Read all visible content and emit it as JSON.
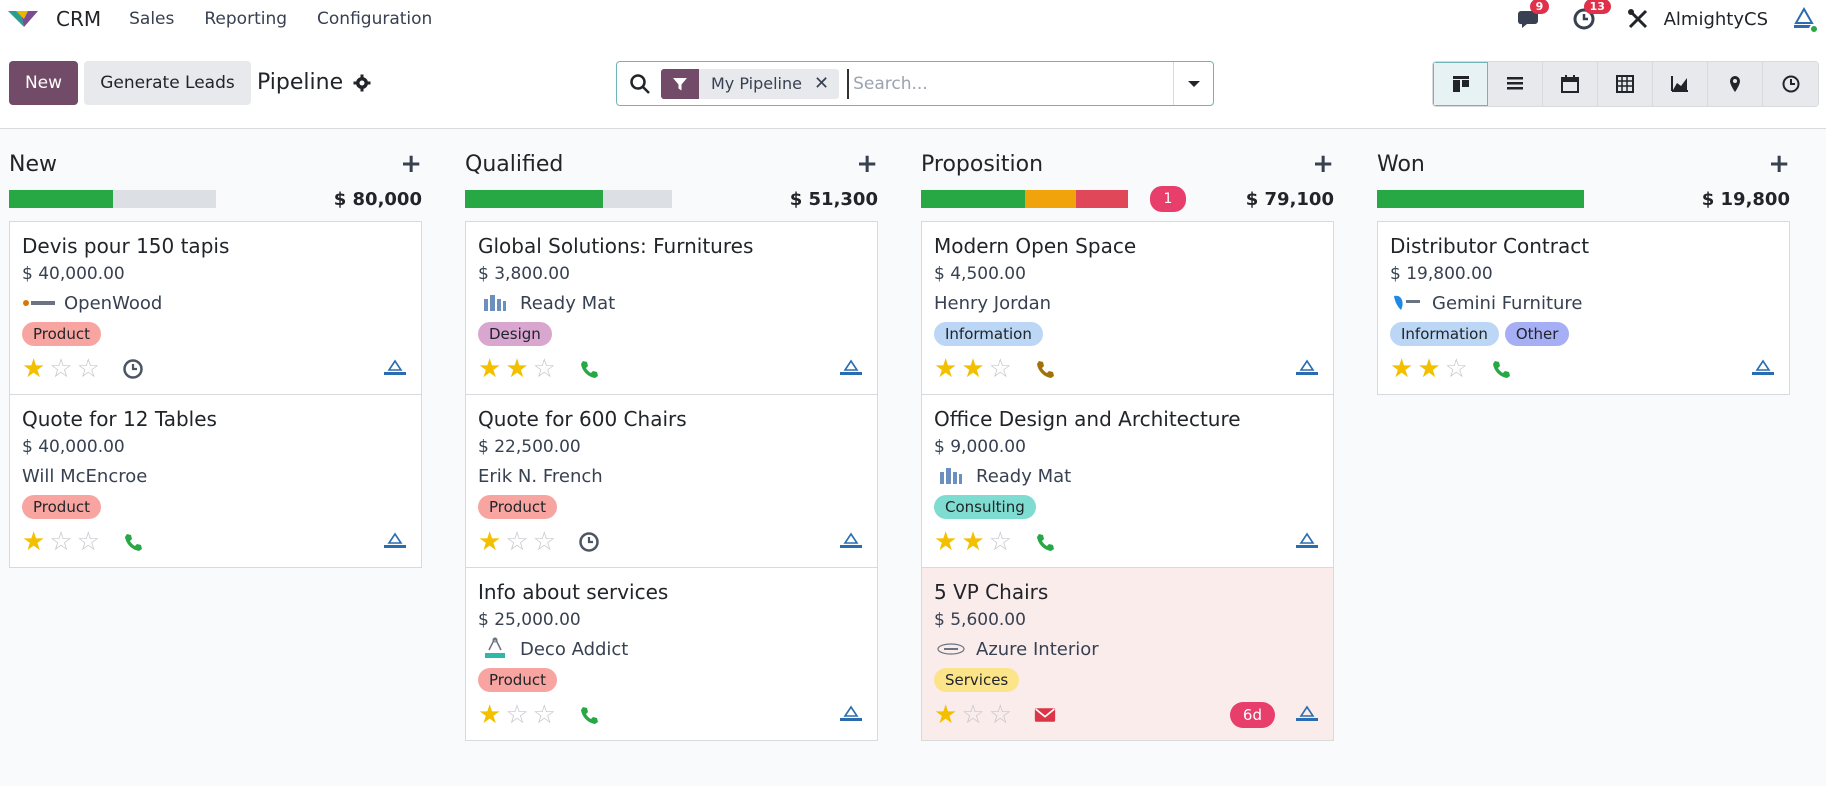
{
  "nav": {
    "app_name": "CRM",
    "menu": [
      "Sales",
      "Reporting",
      "Configuration"
    ],
    "messages_count": "9",
    "activities_count": "13",
    "company": "AlmightyCS"
  },
  "control": {
    "new_label": "New",
    "generate_label": "Generate Leads",
    "title": "Pipeline",
    "facet_label": "My Pipeline",
    "search_placeholder": "Search..."
  },
  "colors": {
    "primary": "#714b67",
    "green": "#28a745",
    "orange": "#f0a30a",
    "red": "#e0485a",
    "badge": "#e83e6c"
  },
  "columns": [
    {
      "title": "New",
      "total": "$ 80,000",
      "count_badge": "",
      "progress": [
        {
          "color": "#28a745",
          "fraction": 0.5
        }
      ],
      "cards": [
        {
          "title": "Devis pour 150 tapis",
          "amount": "$ 40,000.00",
          "partner": "OpenWood",
          "partner_logo": "openwood-logo",
          "tags": [
            {
              "label": "Product",
              "color": "#f8a5a1"
            }
          ],
          "stars": 1,
          "activity": "clock-icon",
          "days": ""
        },
        {
          "title": "Quote for 12 Tables",
          "amount": "$ 40,000.00",
          "partner": "Will McEncroe",
          "partner_logo": "",
          "tags": [
            {
              "label": "Product",
              "color": "#f8a5a1"
            }
          ],
          "stars": 1,
          "activity": "phone-icon",
          "days": ""
        }
      ]
    },
    {
      "title": "Qualified",
      "total": "$ 51,300",
      "count_badge": "",
      "progress": [
        {
          "color": "#28a745",
          "fraction": 0.667
        }
      ],
      "cards": [
        {
          "title": "Global Solutions: Furnitures",
          "amount": "$ 3,800.00",
          "partner": "Ready Mat",
          "partner_logo": "readymat-logo",
          "tags": [
            {
              "label": "Design",
              "color": "#d9a6d0"
            }
          ],
          "stars": 2,
          "activity": "phone-icon",
          "days": ""
        },
        {
          "title": "Quote for 600 Chairs",
          "amount": "$ 22,500.00",
          "partner": "Erik N. French",
          "partner_logo": "",
          "tags": [
            {
              "label": "Product",
              "color": "#f8a5a1"
            }
          ],
          "stars": 1,
          "activity": "clock-icon",
          "days": ""
        },
        {
          "title": "Info about services",
          "amount": "$ 25,000.00",
          "partner": "Deco Addict",
          "partner_logo": "decoaddict-logo",
          "tags": [
            {
              "label": "Product",
              "color": "#f8a5a1"
            }
          ],
          "stars": 1,
          "activity": "phone-icon",
          "days": ""
        }
      ]
    },
    {
      "title": "Proposition",
      "total": "$ 79,100",
      "count_badge": "1",
      "progress": [
        {
          "color": "#28a745",
          "fraction": 0.5
        },
        {
          "color": "#f0a30a",
          "fraction": 0.25
        },
        {
          "color": "#e0485a",
          "fraction": 0.25
        }
      ],
      "cards": [
        {
          "title": "Modern Open Space",
          "amount": "$ 4,500.00",
          "partner": "Henry Jordan",
          "partner_logo": "",
          "tags": [
            {
              "label": "Information",
              "color": "#bcd6f5"
            }
          ],
          "stars": 2,
          "activity": "phone-warning-icon",
          "days": ""
        },
        {
          "title": "Office Design and Architecture",
          "amount": "$ 9,000.00",
          "partner": "Ready Mat",
          "partner_logo": "readymat-logo",
          "tags": [
            {
              "label": "Consulting",
              "color": "#7fdcd1"
            }
          ],
          "stars": 2,
          "activity": "phone-icon",
          "days": ""
        },
        {
          "title": "5 VP Chairs",
          "amount": "$ 5,600.00",
          "partner": "Azure Interior",
          "partner_logo": "azure-logo",
          "tags": [
            {
              "label": "Services",
              "color": "#fbe48a"
            }
          ],
          "stars": 1,
          "activity": "envelope-icon",
          "days": "6d",
          "overdue": true
        }
      ]
    },
    {
      "title": "Won",
      "total": "$ 19,800",
      "count_badge": "",
      "progress": [
        {
          "color": "#28a745",
          "fraction": 1.0
        }
      ],
      "cards": [
        {
          "title": "Distributor Contract",
          "amount": "$ 19,800.00",
          "partner": "Gemini Furniture",
          "partner_logo": "gemini-logo",
          "tags": [
            {
              "label": "Information",
              "color": "#bcd6f5"
            },
            {
              "label": "Other",
              "color": "#a6aef5"
            }
          ],
          "stars": 2,
          "activity": "phone-icon",
          "days": ""
        }
      ]
    }
  ]
}
